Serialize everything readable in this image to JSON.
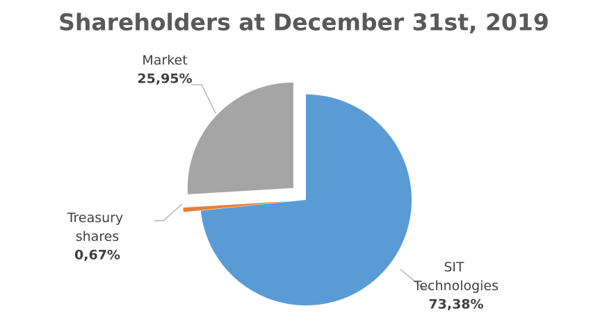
{
  "chart_data": {
    "type": "pie",
    "title": "Shareholders at December 31st, 2019",
    "categories": [
      "SIT Technologies",
      "Treasury shares",
      "Market"
    ],
    "values": [
      73.38,
      0.67,
      25.95
    ],
    "value_labels": [
      "73,38%",
      "0,67%",
      "25,95%"
    ],
    "colors": [
      "#5b9bd5",
      "#ed7d31",
      "#a5a5a5"
    ]
  }
}
